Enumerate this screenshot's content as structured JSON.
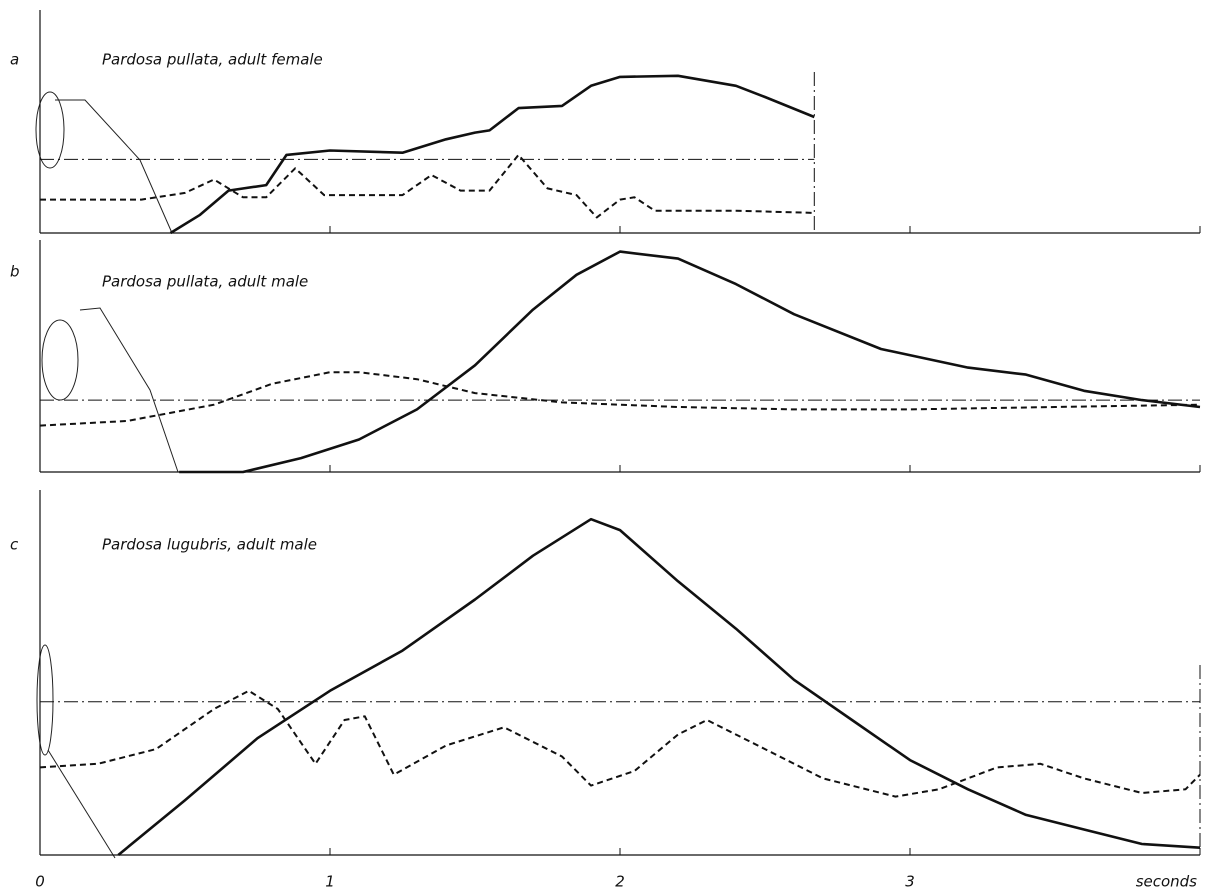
{
  "chart_data": [
    {
      "type": "line",
      "label": "a",
      "title": "Pardosa pullata, adult female",
      "xlim": [
        0,
        4
      ],
      "ylim": [
        0,
        100
      ],
      "hline": 33,
      "vline": 2.67,
      "series": [
        {
          "style": "solid",
          "color": "#111111",
          "x": [
            0.45,
            0.55,
            0.65,
            0.78,
            0.85,
            1.0,
            1.25,
            1.4,
            1.5,
            1.55,
            1.65,
            1.8,
            1.9,
            2.0,
            2.2,
            2.4,
            2.5,
            2.67
          ],
          "values": [
            0,
            8,
            19,
            21.5,
            35,
            37,
            36,
            42,
            45,
            46,
            56,
            57,
            66,
            70,
            70.5,
            66,
            61,
            52
          ]
        },
        {
          "style": "dashed",
          "color": "#111111",
          "x": [
            0,
            0.35,
            0.5,
            0.6,
            0.7,
            0.78,
            0.88,
            0.98,
            1.25,
            1.35,
            1.45,
            1.55,
            1.65,
            1.75,
            1.85,
            1.92,
            2.0,
            2.05,
            2.12,
            2.4,
            2.67
          ],
          "values": [
            15,
            15,
            18,
            24,
            16,
            16,
            29,
            17,
            17,
            26,
            19,
            19,
            35,
            20,
            17,
            7,
            15,
            16,
            10,
            10,
            9
          ]
        }
      ]
    },
    {
      "type": "line",
      "label": "b",
      "title": "Pardosa pullata, adult male",
      "xlim": [
        0,
        4
      ],
      "ylim": [
        0,
        100
      ],
      "hline": 31,
      "series": [
        {
          "style": "solid",
          "color": "#111111",
          "x": [
            0.48,
            0.7,
            0.9,
            1.1,
            1.3,
            1.5,
            1.7,
            1.85,
            2.0,
            2.2,
            2.4,
            2.6,
            2.9,
            3.2,
            3.4,
            3.6,
            3.8,
            4.0
          ],
          "values": [
            0,
            0,
            6,
            14,
            27,
            46,
            70,
            85,
            95,
            92,
            81,
            68,
            53,
            45,
            42,
            35,
            31,
            28
          ]
        },
        {
          "style": "dashed",
          "color": "#111111",
          "x": [
            0,
            0.3,
            0.6,
            0.8,
            1.0,
            1.1,
            1.3,
            1.5,
            1.8,
            2.2,
            2.6,
            3.0,
            3.5,
            4.0
          ],
          "values": [
            20,
            22,
            29,
            38,
            43,
            43,
            40,
            34,
            30,
            28,
            27,
            27,
            28,
            29
          ]
        }
      ]
    },
    {
      "type": "line",
      "label": "c",
      "title": "Pardosa lugubris, adult male",
      "xlim": [
        0,
        4
      ],
      "ylim": [
        0,
        100
      ],
      "hline": 42,
      "vline": 4,
      "xticks": [
        0,
        1,
        2,
        3,
        {
          "value": 4,
          "label": "seconds"
        }
      ],
      "series": [
        {
          "style": "solid",
          "color": "#111111",
          "x": [
            0.27,
            0.5,
            0.75,
            1.0,
            1.25,
            1.5,
            1.7,
            1.9,
            2.0,
            2.2,
            2.4,
            2.6,
            2.8,
            3.0,
            3.2,
            3.4,
            3.6,
            3.8,
            4.0
          ],
          "values": [
            0,
            15,
            32,
            45,
            56,
            70,
            82,
            92,
            89,
            75,
            62,
            48,
            37,
            26,
            18,
            11,
            7,
            3,
            2
          ]
        },
        {
          "style": "dashed",
          "color": "#111111",
          "x": [
            0,
            0.2,
            0.4,
            0.6,
            0.72,
            0.82,
            0.95,
            1.05,
            1.12,
            1.22,
            1.4,
            1.6,
            1.8,
            1.9,
            2.05,
            2.2,
            2.3,
            2.5,
            2.7,
            2.95,
            3.1,
            3.3,
            3.45,
            3.6,
            3.8,
            3.95,
            4.0
          ],
          "values": [
            24,
            25,
            29,
            40,
            45,
            40,
            25,
            37,
            38,
            22,
            30,
            35,
            27,
            19,
            23,
            33,
            37,
            29,
            21,
            16,
            18,
            24,
            25,
            21,
            17,
            18,
            22
          ]
        }
      ]
    }
  ]
}
